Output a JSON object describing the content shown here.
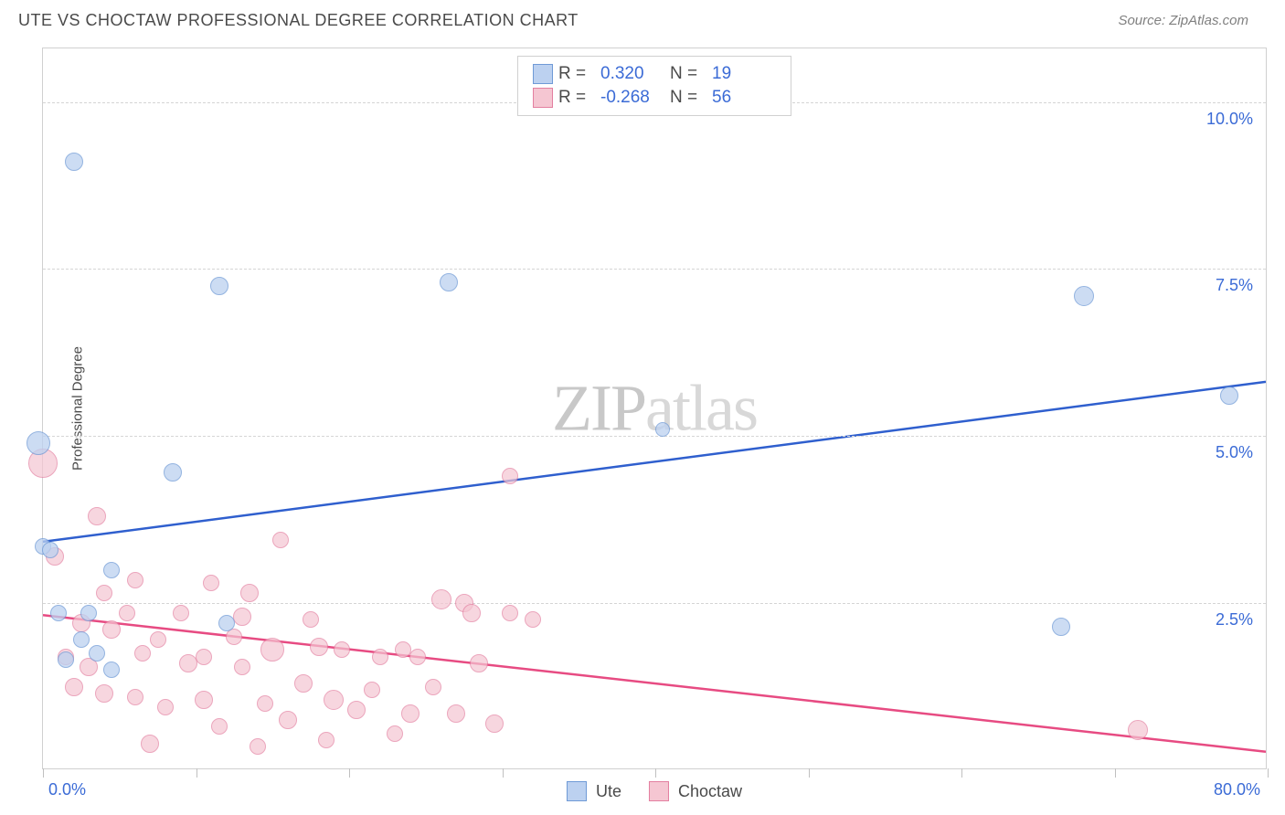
{
  "title": "UTE VS CHOCTAW PROFESSIONAL DEGREE CORRELATION CHART",
  "source": "Source: ZipAtlas.com",
  "watermark": "ZIPatlas",
  "y_axis_title": "Professional Degree",
  "chart": {
    "type": "scatter",
    "xlim": [
      0,
      80
    ],
    "ylim": [
      0,
      10.8
    ],
    "x_ticks": [
      0,
      10,
      20,
      30,
      40,
      50,
      60,
      70,
      80
    ],
    "y_ticks": [
      2.5,
      5.0,
      7.5,
      10.0
    ],
    "x_tick_labels": {
      "min": "0.0%",
      "max": "80.0%"
    },
    "y_tick_labels": [
      "2.5%",
      "5.0%",
      "7.5%",
      "10.0%"
    ],
    "grid_color": "#d5d5d5",
    "background_color": "#ffffff",
    "border_color": "#d0d0d0",
    "series": [
      {
        "name": "Ute",
        "fill": "#bcd1f0",
        "stroke": "#6f9ad6",
        "opacity": 0.75,
        "R": "0.320",
        "N": "19",
        "trend": {
          "x1": 0,
          "y1": 3.4,
          "x2": 80,
          "y2": 5.8,
          "color": "#2f5fce",
          "width": 2.5
        },
        "points": [
          {
            "x": 2.0,
            "y": 9.1,
            "r": 10
          },
          {
            "x": 11.5,
            "y": 7.25,
            "r": 10
          },
          {
            "x": 26.5,
            "y": 7.3,
            "r": 10
          },
          {
            "x": 68.0,
            "y": 7.1,
            "r": 11
          },
          {
            "x": 77.5,
            "y": 5.6,
            "r": 10
          },
          {
            "x": -0.3,
            "y": 4.9,
            "r": 13
          },
          {
            "x": 8.5,
            "y": 4.45,
            "r": 10
          },
          {
            "x": 0.0,
            "y": 3.35,
            "r": 9
          },
          {
            "x": 4.5,
            "y": 3.0,
            "r": 9
          },
          {
            "x": 1.0,
            "y": 2.35,
            "r": 9
          },
          {
            "x": 3.0,
            "y": 2.35,
            "r": 9
          },
          {
            "x": 12.0,
            "y": 2.2,
            "r": 9
          },
          {
            "x": 2.5,
            "y": 1.95,
            "r": 9
          },
          {
            "x": 3.5,
            "y": 1.75,
            "r": 9
          },
          {
            "x": 1.5,
            "y": 1.65,
            "r": 9
          },
          {
            "x": 4.5,
            "y": 1.5,
            "r": 9
          },
          {
            "x": 40.5,
            "y": 5.1,
            "r": 8
          },
          {
            "x": 66.5,
            "y": 2.15,
            "r": 10
          },
          {
            "x": 0.5,
            "y": 3.3,
            "r": 9
          }
        ]
      },
      {
        "name": "Choctaw",
        "fill": "#f5c6d2",
        "stroke": "#e37fa0",
        "opacity": 0.7,
        "R": "-0.268",
        "N": "56",
        "trend": {
          "x1": 0,
          "y1": 2.3,
          "x2": 80,
          "y2": 0.25,
          "color": "#e74b82",
          "width": 2.5
        },
        "points": [
          {
            "x": 0.0,
            "y": 4.6,
            "r": 16
          },
          {
            "x": 30.5,
            "y": 4.4,
            "r": 9
          },
          {
            "x": 3.5,
            "y": 3.8,
            "r": 10
          },
          {
            "x": 15.5,
            "y": 3.45,
            "r": 9
          },
          {
            "x": 0.8,
            "y": 3.2,
            "r": 10
          },
          {
            "x": 6.0,
            "y": 2.85,
            "r": 9
          },
          {
            "x": 11.0,
            "y": 2.8,
            "r": 9
          },
          {
            "x": 4.0,
            "y": 2.65,
            "r": 9
          },
          {
            "x": 13.5,
            "y": 2.65,
            "r": 10
          },
          {
            "x": 26.0,
            "y": 2.55,
            "r": 11
          },
          {
            "x": 27.5,
            "y": 2.5,
            "r": 10
          },
          {
            "x": 2.5,
            "y": 2.2,
            "r": 10
          },
          {
            "x": 4.5,
            "y": 2.1,
            "r": 10
          },
          {
            "x": 7.5,
            "y": 1.95,
            "r": 9
          },
          {
            "x": 12.5,
            "y": 2.0,
            "r": 9
          },
          {
            "x": 30.5,
            "y": 2.35,
            "r": 9
          },
          {
            "x": 22.0,
            "y": 1.7,
            "r": 9
          },
          {
            "x": 1.5,
            "y": 1.7,
            "r": 9
          },
          {
            "x": 3.0,
            "y": 1.55,
            "r": 10
          },
          {
            "x": 6.5,
            "y": 1.75,
            "r": 9
          },
          {
            "x": 9.5,
            "y": 1.6,
            "r": 10
          },
          {
            "x": 10.5,
            "y": 1.7,
            "r": 9
          },
          {
            "x": 13.0,
            "y": 1.55,
            "r": 9
          },
          {
            "x": 15.0,
            "y": 1.8,
            "r": 13
          },
          {
            "x": 18.0,
            "y": 1.85,
            "r": 10
          },
          {
            "x": 19.5,
            "y": 1.8,
            "r": 9
          },
          {
            "x": 17.0,
            "y": 1.3,
            "r": 10
          },
          {
            "x": 4.0,
            "y": 1.15,
            "r": 10
          },
          {
            "x": 6.0,
            "y": 1.1,
            "r": 9
          },
          {
            "x": 8.0,
            "y": 0.95,
            "r": 9
          },
          {
            "x": 10.5,
            "y": 1.05,
            "r": 10
          },
          {
            "x": 11.5,
            "y": 0.65,
            "r": 9
          },
          {
            "x": 14.5,
            "y": 1.0,
            "r": 9
          },
          {
            "x": 16.0,
            "y": 0.75,
            "r": 10
          },
          {
            "x": 19.0,
            "y": 1.05,
            "r": 11
          },
          {
            "x": 20.5,
            "y": 0.9,
            "r": 10
          },
          {
            "x": 21.5,
            "y": 1.2,
            "r": 9
          },
          {
            "x": 23.0,
            "y": 0.55,
            "r": 9
          },
          {
            "x": 24.5,
            "y": 1.7,
            "r": 9
          },
          {
            "x": 24.0,
            "y": 0.85,
            "r": 10
          },
          {
            "x": 25.5,
            "y": 1.25,
            "r": 9
          },
          {
            "x": 27.0,
            "y": 0.85,
            "r": 10
          },
          {
            "x": 28.0,
            "y": 2.35,
            "r": 10
          },
          {
            "x": 28.5,
            "y": 1.6,
            "r": 10
          },
          {
            "x": 29.5,
            "y": 0.7,
            "r": 10
          },
          {
            "x": 14.0,
            "y": 0.35,
            "r": 9
          },
          {
            "x": 7.0,
            "y": 0.4,
            "r": 10
          },
          {
            "x": 18.5,
            "y": 0.45,
            "r": 9
          },
          {
            "x": 32.0,
            "y": 2.25,
            "r": 9
          },
          {
            "x": 5.5,
            "y": 2.35,
            "r": 9
          },
          {
            "x": 2.0,
            "y": 1.25,
            "r": 10
          },
          {
            "x": 9.0,
            "y": 2.35,
            "r": 9
          },
          {
            "x": 17.5,
            "y": 2.25,
            "r": 9
          },
          {
            "x": 23.5,
            "y": 1.8,
            "r": 9
          },
          {
            "x": 71.5,
            "y": 0.6,
            "r": 11
          },
          {
            "x": 13.0,
            "y": 2.3,
            "r": 10
          }
        ]
      }
    ]
  },
  "text_color_axis": "#3b6bd6",
  "text_color_title": "#4a4a4a"
}
